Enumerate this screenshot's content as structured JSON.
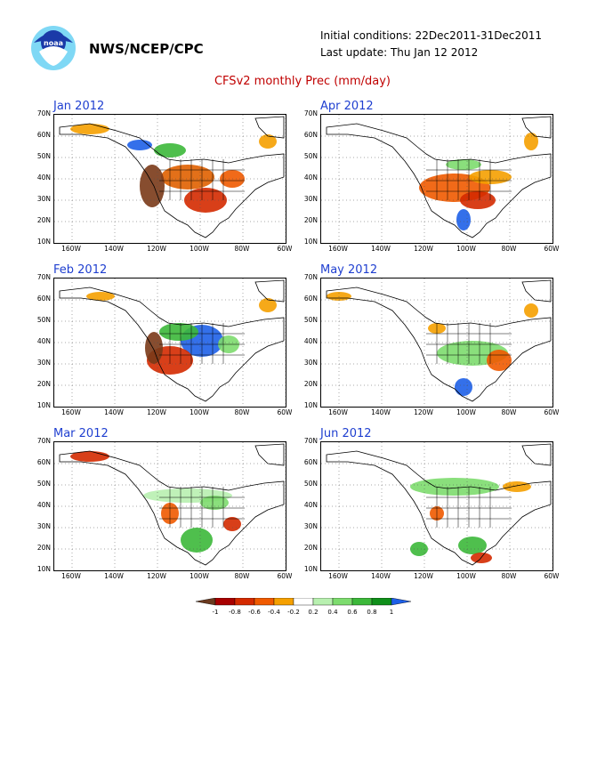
{
  "header": {
    "org": "NWS/NCEP/CPC",
    "logo_icon": "noaa-logo-icon",
    "initial_conditions": "Initial conditions: 22Dec2011-31Dec2011",
    "last_update": "Last update: Thu Jan 12 2012",
    "title": "CFSv2 monthly Prec (mm/day)"
  },
  "panels": [
    {
      "title": "Jan 2012"
    },
    {
      "title": "Apr 2012"
    },
    {
      "title": "Feb 2012"
    },
    {
      "title": "May 2012"
    },
    {
      "title": "Mar 2012"
    },
    {
      "title": "Jun 2012"
    }
  ],
  "axes": {
    "lat_labels": [
      "70N",
      "60N",
      "50N",
      "40N",
      "30N",
      "20N",
      "10N"
    ],
    "lon_labels": [
      "160W",
      "140W",
      "120W",
      "100W",
      "80W",
      "60W"
    ]
  },
  "colorbar": {
    "labels": [
      "-1",
      "-0.8",
      "-0.6",
      "-0.4",
      "-0.2",
      "0.2",
      "0.4",
      "0.6",
      "0.8",
      "1"
    ],
    "colors": [
      "#6b3a1f",
      "#a80000",
      "#d42a00",
      "#f05a00",
      "#f5a000",
      "#ffffff",
      "#b8f0b0",
      "#7ddc6e",
      "#3cb83a",
      "#0f8f1a",
      "#1e60e8"
    ]
  }
}
